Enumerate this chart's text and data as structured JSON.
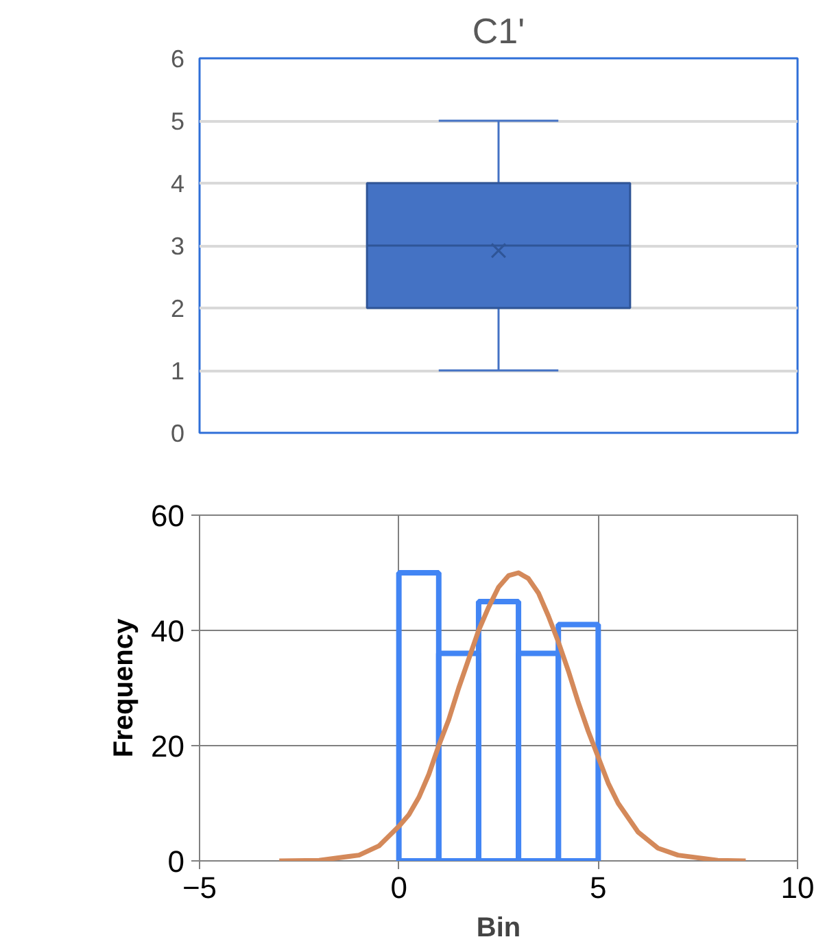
{
  "chart_data": [
    {
      "type": "box",
      "title": "C1'",
      "categories": [
        null
      ],
      "color": "#4472c4",
      "boxes": [
        {
          "low": 1,
          "q1": 2,
          "median": 3,
          "q3": 4,
          "high": 5,
          "mean": 2.92
        }
      ],
      "ylim": [
        0,
        6
      ],
      "yticks": [
        0,
        1,
        2,
        3,
        4,
        5,
        6
      ],
      "grid": "y",
      "tick_labels": "y"
    },
    {
      "type": "histogram",
      "xlabel": "Bin",
      "ylabel": "Frequency",
      "xlim": [
        -5,
        10
      ],
      "xticks": [
        -5,
        0,
        5,
        10
      ],
      "ylim": [
        0,
        60
      ],
      "yticks": [
        0,
        20,
        40,
        60
      ],
      "grid": true,
      "series": [
        {
          "type": "histogram",
          "color": "#4285f4",
          "bins": [
            0,
            1,
            2,
            3,
            4,
            5
          ],
          "values": [
            50,
            36,
            45,
            36,
            41
          ]
        },
        {
          "type": "line",
          "color": "#d4895a",
          "x": [
            -3,
            -2,
            -1,
            -0.5,
            0,
            0.25,
            0.5,
            0.75,
            1,
            1.25,
            1.5,
            1.75,
            2,
            2.25,
            2.5,
            2.75,
            3,
            3.25,
            3.5,
            3.75,
            4,
            4.25,
            4.5,
            4.75,
            5,
            5.25,
            5.5,
            6,
            6.5,
            7,
            8,
            8.7
          ],
          "values": [
            0,
            0.1,
            1,
            2.6,
            6,
            8,
            11,
            15,
            20,
            24.5,
            30,
            35,
            40,
            44,
            47.5,
            49.5,
            50,
            49,
            46.5,
            42.5,
            38,
            33,
            27.5,
            22.5,
            18,
            13.5,
            10,
            5,
            2.2,
            1,
            0.1,
            0
          ]
        }
      ]
    }
  ]
}
